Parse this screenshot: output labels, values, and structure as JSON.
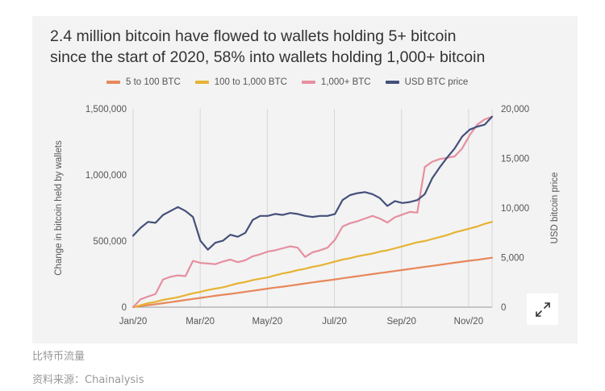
{
  "title_lines": [
    "2.4 million bitcoin have flowed to wallets holding 5+ bitcoin",
    "since the start of 2020, 58% into wallets holding 1,000+ bitcoin"
  ],
  "caption": "比特币流量",
  "source": "资料来源：Chainalysis",
  "icons": {
    "expand": "expand-arrows-icon"
  },
  "chart_data": {
    "type": "line",
    "x_tick_labels": [
      "Jan/20",
      "Mar/20",
      "May/20",
      "Jul/20",
      "Sep/20",
      "Nov/20"
    ],
    "ylabel_left": "Change in bitcoin held by wallets",
    "ylabel_right": "USD bitcoin price",
    "ylim_left": [
      0,
      1500000
    ],
    "ylim_right": [
      0,
      20000
    ],
    "yticks_left": [
      "0",
      "500,000",
      "1,000,000",
      "1,500,000"
    ],
    "yticks_right": [
      "0",
      "5,000",
      "10,000",
      "15,000",
      "20,000"
    ],
    "grid": "vertical",
    "legend_position": "top",
    "series": [
      {
        "name": "5 to 100 BTC",
        "axis": "left",
        "color": "#e8875a",
        "x": [
          0,
          1,
          2,
          3,
          4,
          5,
          6,
          7,
          8,
          9,
          10,
          11,
          12,
          13,
          14,
          15,
          16,
          17,
          18,
          19,
          20,
          21,
          22,
          23,
          24,
          25,
          26,
          27,
          28,
          29,
          30,
          31,
          32,
          33,
          34,
          35,
          36,
          37,
          38,
          39,
          40,
          41,
          42,
          43,
          44,
          45,
          46,
          47,
          48
        ],
        "values": [
          0,
          8000,
          15000,
          22000,
          30000,
          38000,
          46000,
          54000,
          62000,
          70000,
          78000,
          86000,
          94000,
          100000,
          108000,
          116000,
          124000,
          132000,
          140000,
          148000,
          155000,
          163000,
          171000,
          179000,
          187000,
          195000,
          202000,
          210000,
          218000,
          226000,
          234000,
          242000,
          250000,
          258000,
          265000,
          273000,
          281000,
          289000,
          297000,
          305000,
          312000,
          320000,
          328000,
          336000,
          344000,
          351000,
          358000,
          366000,
          374000
        ]
      },
      {
        "name": "100 to 1,000 BTC",
        "axis": "left",
        "color": "#e6b333",
        "x": [
          0,
          1,
          2,
          3,
          4,
          5,
          6,
          7,
          8,
          9,
          10,
          11,
          12,
          13,
          14,
          15,
          16,
          17,
          18,
          19,
          20,
          21,
          22,
          23,
          24,
          25,
          26,
          27,
          28,
          29,
          30,
          31,
          32,
          33,
          34,
          35,
          36,
          37,
          38,
          39,
          40,
          41,
          42,
          43,
          44,
          45,
          46,
          47,
          48
        ],
        "values": [
          0,
          15000,
          30000,
          40000,
          55000,
          65000,
          75000,
          90000,
          105000,
          115000,
          130000,
          140000,
          150000,
          165000,
          180000,
          190000,
          205000,
          215000,
          225000,
          240000,
          255000,
          265000,
          280000,
          290000,
          305000,
          315000,
          330000,
          345000,
          360000,
          370000,
          385000,
          395000,
          405000,
          420000,
          430000,
          445000,
          460000,
          475000,
          490000,
          500000,
          515000,
          530000,
          545000,
          565000,
          580000,
          595000,
          610000,
          630000,
          645000
        ]
      },
      {
        "name": "1,000+ BTC",
        "axis": "left",
        "color": "#e68fa0",
        "x": [
          0,
          1,
          2,
          3,
          4,
          5,
          6,
          7,
          8,
          9,
          10,
          11,
          12,
          13,
          14,
          15,
          16,
          17,
          18,
          19,
          20,
          21,
          22,
          23,
          24,
          25,
          26,
          27,
          28,
          29,
          30,
          31,
          32,
          33,
          34,
          35,
          36,
          37,
          38,
          39,
          40,
          41,
          42,
          43,
          44,
          45,
          46,
          47,
          48
        ],
        "values": [
          0,
          60000,
          80000,
          100000,
          210000,
          230000,
          240000,
          235000,
          350000,
          335000,
          330000,
          325000,
          345000,
          360000,
          340000,
          355000,
          385000,
          400000,
          420000,
          430000,
          445000,
          460000,
          450000,
          380000,
          415000,
          430000,
          450000,
          510000,
          610000,
          635000,
          650000,
          670000,
          690000,
          670000,
          640000,
          680000,
          700000,
          720000,
          715000,
          1060000,
          1100000,
          1120000,
          1130000,
          1140000,
          1200000,
          1300000,
          1380000,
          1420000,
          1440000
        ]
      },
      {
        "name": "USD BTC price",
        "axis": "right",
        "color": "#44507a",
        "x": [
          0,
          1,
          2,
          3,
          4,
          5,
          6,
          7,
          8,
          9,
          10,
          11,
          12,
          13,
          14,
          15,
          16,
          17,
          18,
          19,
          20,
          21,
          22,
          23,
          24,
          25,
          26,
          27,
          28,
          29,
          30,
          31,
          32,
          33,
          34,
          35,
          36,
          37,
          38,
          39,
          40,
          41,
          42,
          43,
          44,
          45,
          46,
          47,
          48
        ],
        "values": [
          7200,
          8000,
          8600,
          8500,
          9300,
          9700,
          10100,
          9700,
          9100,
          6700,
          5800,
          6500,
          6700,
          7300,
          7100,
          7500,
          8800,
          9200,
          9200,
          9400,
          9300,
          9500,
          9400,
          9200,
          9100,
          9200,
          9200,
          9400,
          10800,
          11300,
          11500,
          11600,
          11400,
          11000,
          10200,
          10700,
          10500,
          10600,
          10800,
          11400,
          13000,
          14100,
          15100,
          16000,
          17200,
          17900,
          18200,
          18400,
          19200
        ]
      }
    ]
  }
}
